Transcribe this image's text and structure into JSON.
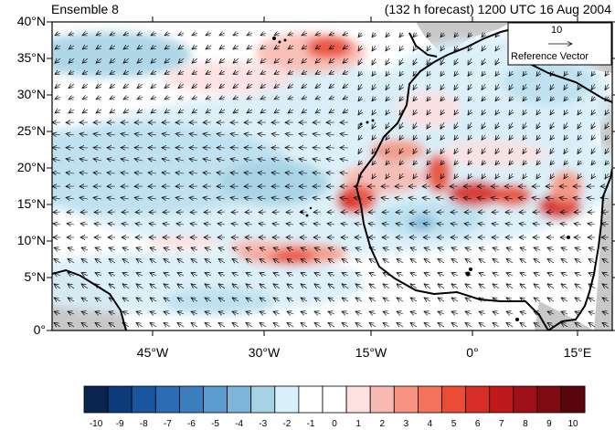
{
  "header": {
    "left_title": "Ensemble 8",
    "right_title": "(132 h forecast) 1200 UTC 16 Aug 2004"
  },
  "map": {
    "lat_labels": [
      "40°N",
      "35°N",
      "30°N",
      "25°N",
      "20°N",
      "15°N",
      "10°N",
      "5°N",
      "0°"
    ],
    "lon_labels": [
      "45°W",
      "30°W",
      "15°W",
      "0°",
      "15°E"
    ],
    "reference_vector": {
      "value": "10",
      "label": "Reference Vector"
    }
  },
  "colorbar": {
    "labels": [
      "-10",
      "-9",
      "-8",
      "-7",
      "-6",
      "-5",
      "-4",
      "-3",
      "-2",
      "-1",
      "0",
      "1",
      "2",
      "3",
      "4",
      "5",
      "6",
      "7",
      "8",
      "9",
      "10"
    ],
    "colors": [
      "#08244f",
      "#0c3a7a",
      "#1a55a0",
      "#2a6cb5",
      "#3c7fc0",
      "#5a9ccd",
      "#7cb5d9",
      "#a6d3e4",
      "#d9f0fa",
      "#ffffff",
      "#ffffff",
      "#fde0e0",
      "#f8b9b0",
      "#f69480",
      "#f2735a",
      "#ea4c36",
      "#d82c26",
      "#c0191c",
      "#a01019",
      "#7e0a12",
      "#5a050b"
    ]
  },
  "colors": {
    "land_gray": "#c8c8c8",
    "coast": "#000000",
    "arrow": "#000000"
  }
}
